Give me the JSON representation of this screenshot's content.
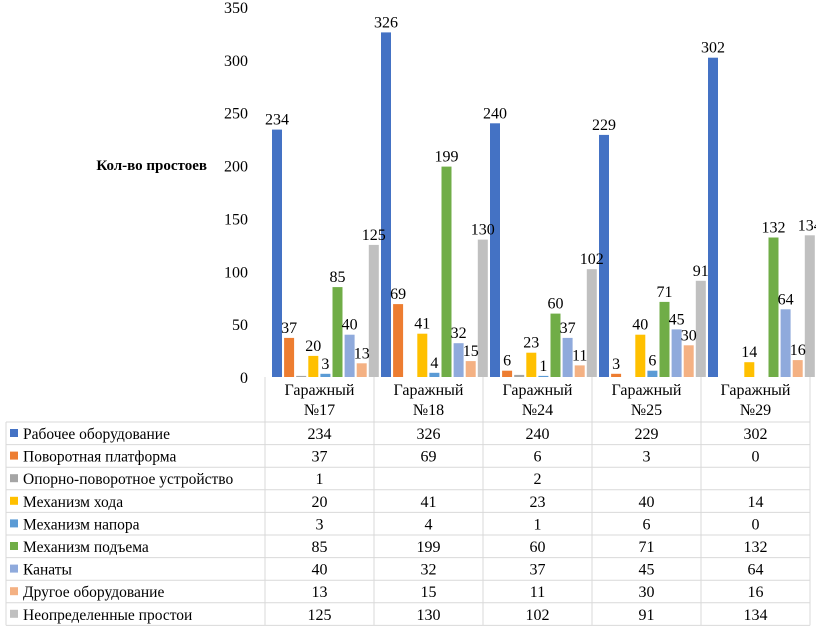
{
  "chart_data": {
    "type": "bar",
    "title": "",
    "xlabel": "",
    "ylabel": "Кол-во простоев",
    "ylim": [
      0,
      350
    ],
    "yticks": [
      0,
      50,
      100,
      150,
      200,
      250,
      300,
      350
    ],
    "grid": false,
    "legend_placement": "data-table-below",
    "categories": [
      [
        "Гаражный",
        "№17"
      ],
      [
        "Гаражный",
        "№18"
      ],
      [
        "Гаражный",
        "№24"
      ],
      [
        "Гаражный",
        "№25"
      ],
      [
        "Гаражный",
        "№29"
      ]
    ],
    "series": [
      {
        "name": "Рабочее оборудование",
        "color": "#4472c4",
        "values": [
          234,
          326,
          240,
          229,
          302
        ],
        "show_labels": true
      },
      {
        "name": "Поворотная платформа",
        "color": "#ed7d31",
        "values": [
          37,
          69,
          6,
          3,
          0
        ],
        "show_labels": true
      },
      {
        "name": "Опорно-поворотное устройство",
        "color": "#a5a5a5",
        "values": [
          1,
          null,
          2,
          null,
          null
        ],
        "show_labels": false
      },
      {
        "name": "Механизм хода",
        "color": "#ffc000",
        "values": [
          20,
          41,
          23,
          40,
          14
        ],
        "show_labels": true
      },
      {
        "name": "Механизм напора",
        "color": "#5b9bd5",
        "values": [
          3,
          4,
          1,
          6,
          0
        ],
        "show_labels": true
      },
      {
        "name": "Механизм подъема",
        "color": "#70ad47",
        "values": [
          85,
          199,
          60,
          71,
          132
        ],
        "show_labels": true
      },
      {
        "name": "Канаты",
        "color": "#8faadc",
        "values": [
          40,
          32,
          37,
          45,
          64
        ],
        "show_labels": true
      },
      {
        "name": "Другое оборудование",
        "color": "#f4b183",
        "values": [
          13,
          15,
          11,
          30,
          16
        ],
        "show_labels": true
      },
      {
        "name": "Неопределенные простои",
        "color": "#c0c0c0",
        "values": [
          125,
          130,
          102,
          91,
          134
        ],
        "show_labels": true
      }
    ],
    "table_cells": [
      [
        "234",
        "326",
        "240",
        "229",
        "302"
      ],
      [
        "37",
        "69",
        "6",
        "3",
        "0"
      ],
      [
        "1",
        "",
        "2",
        "",
        ""
      ],
      [
        "20",
        "41",
        "23",
        "40",
        "14"
      ],
      [
        "3",
        "4",
        "1",
        "6",
        "0"
      ],
      [
        "85",
        "199",
        "60",
        "71",
        "132"
      ],
      [
        "40",
        "32",
        "37",
        "45",
        "64"
      ],
      [
        "13",
        "15",
        "11",
        "30",
        "16"
      ],
      [
        "125",
        "130",
        "102",
        "91",
        "134"
      ]
    ]
  }
}
